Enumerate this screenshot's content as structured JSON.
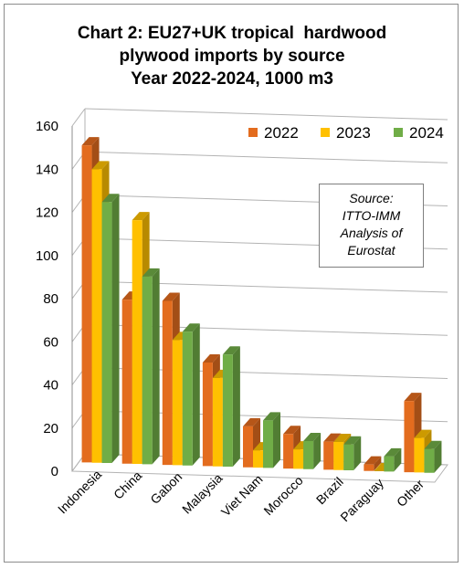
{
  "chart_data": {
    "type": "bar",
    "title_lines": [
      "Chart 2: EU27+UK tropical  hardwood",
      "plywood imports by source",
      "Year 2022-2024, 1000 m3"
    ],
    "categories": [
      "Indonesia",
      "China",
      "Gabon",
      "Malaysia",
      "Viet Nam",
      "Morocco",
      "Brazil",
      "Paraguay",
      "Other"
    ],
    "series": [
      {
        "name": "2022",
        "color": "#E36C1E",
        "values": [
          147,
          76,
          76,
          48,
          19,
          16,
          13,
          3,
          33
        ]
      },
      {
        "name": "2023",
        "color": "#FFC000",
        "values": [
          136,
          113,
          58,
          41,
          8,
          9,
          13,
          0,
          16
        ]
      },
      {
        "name": "2024",
        "color": "#70AD47",
        "values": [
          121,
          87,
          62,
          52,
          22,
          13,
          12,
          7,
          11
        ]
      }
    ],
    "ylim": [
      0,
      160
    ],
    "yticks": [
      "0",
      "20",
      "40",
      "60",
      "80",
      "100",
      "120",
      "140",
      "160"
    ],
    "grid": true,
    "legend_position": "top-right",
    "annotation_lines": [
      "Source:",
      "ITTO-IMM",
      "Analysis of",
      "Eurostat"
    ]
  }
}
